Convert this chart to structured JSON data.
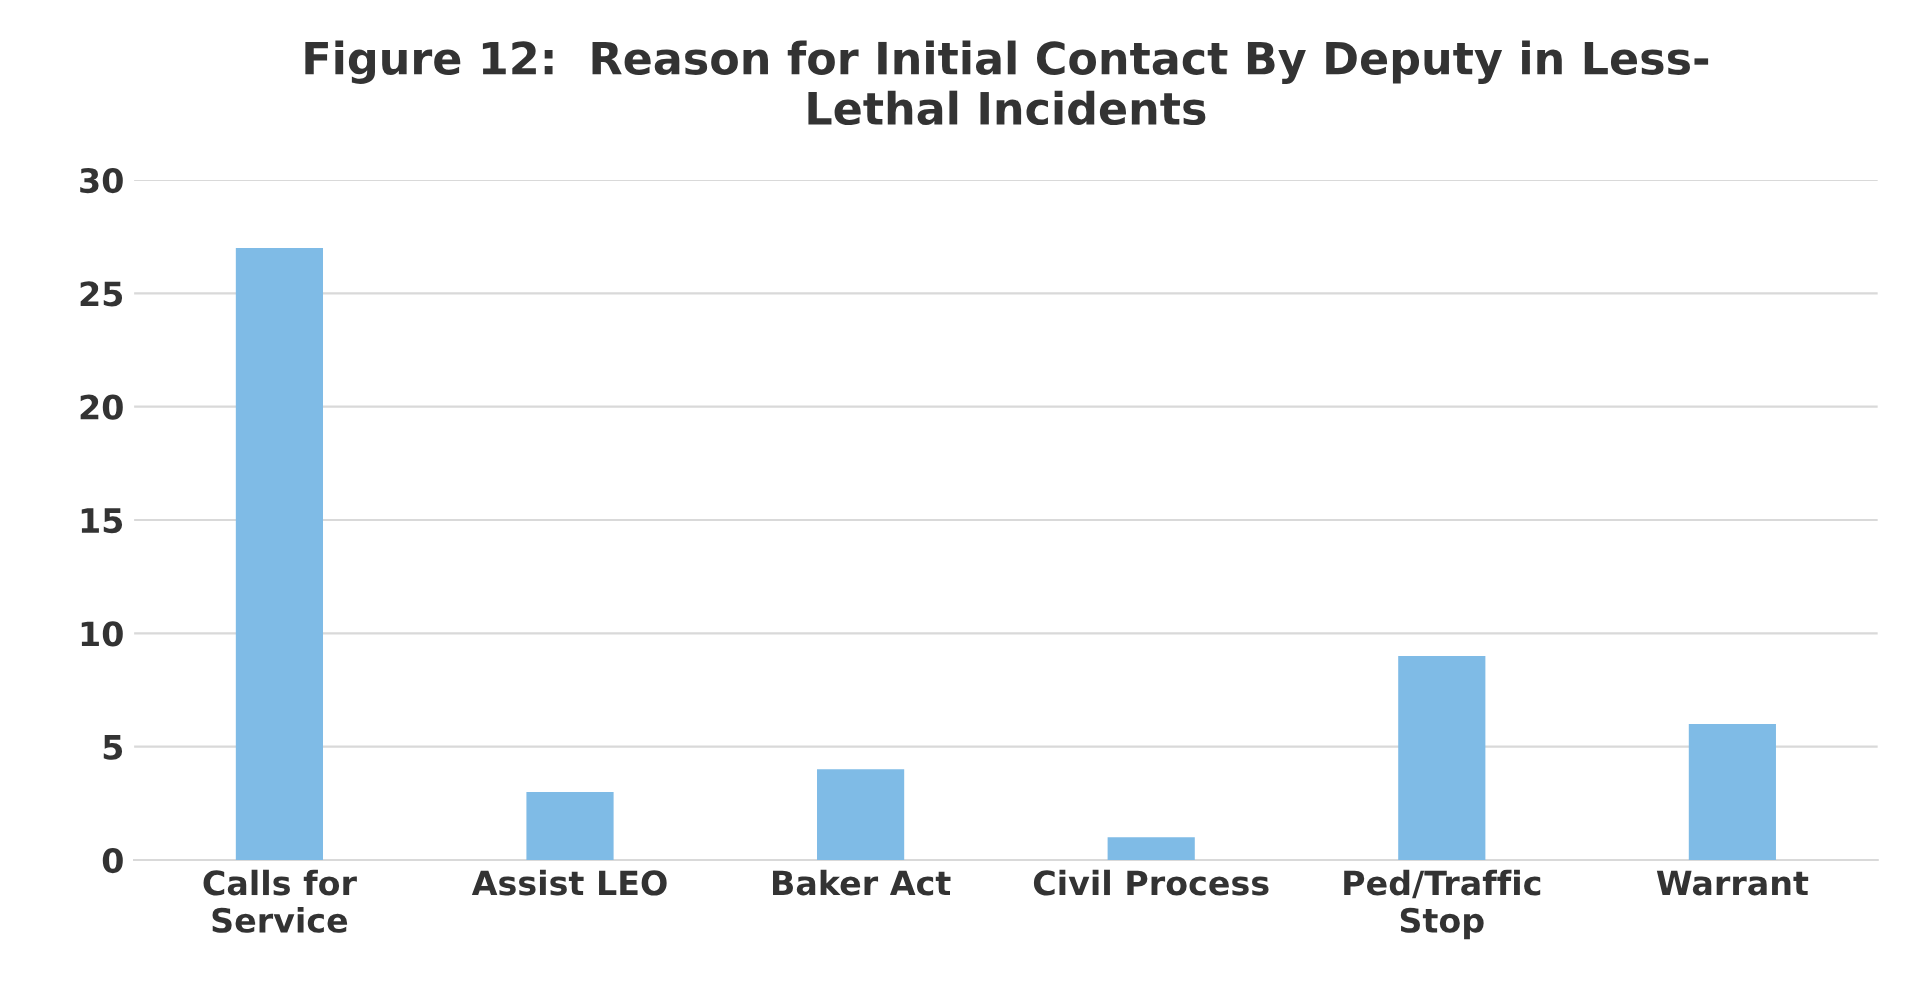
{
  "chart_data": {
    "type": "bar",
    "title": "Figure 12:  Reason for Initial Contact By Deputy in Less-\nLethal Incidents",
    "categories": [
      "Calls for\nService",
      "Assist LEO",
      "Baker Act",
      "Civil Process",
      "Ped/Traffic\nStop",
      "Warrant"
    ],
    "values": [
      27,
      3,
      4,
      1,
      9,
      6
    ],
    "color": "#7fbbe6",
    "ylim": [
      0,
      30
    ],
    "yticks": [
      0,
      5,
      10,
      15,
      20,
      25,
      30
    ],
    "grid": "y"
  }
}
